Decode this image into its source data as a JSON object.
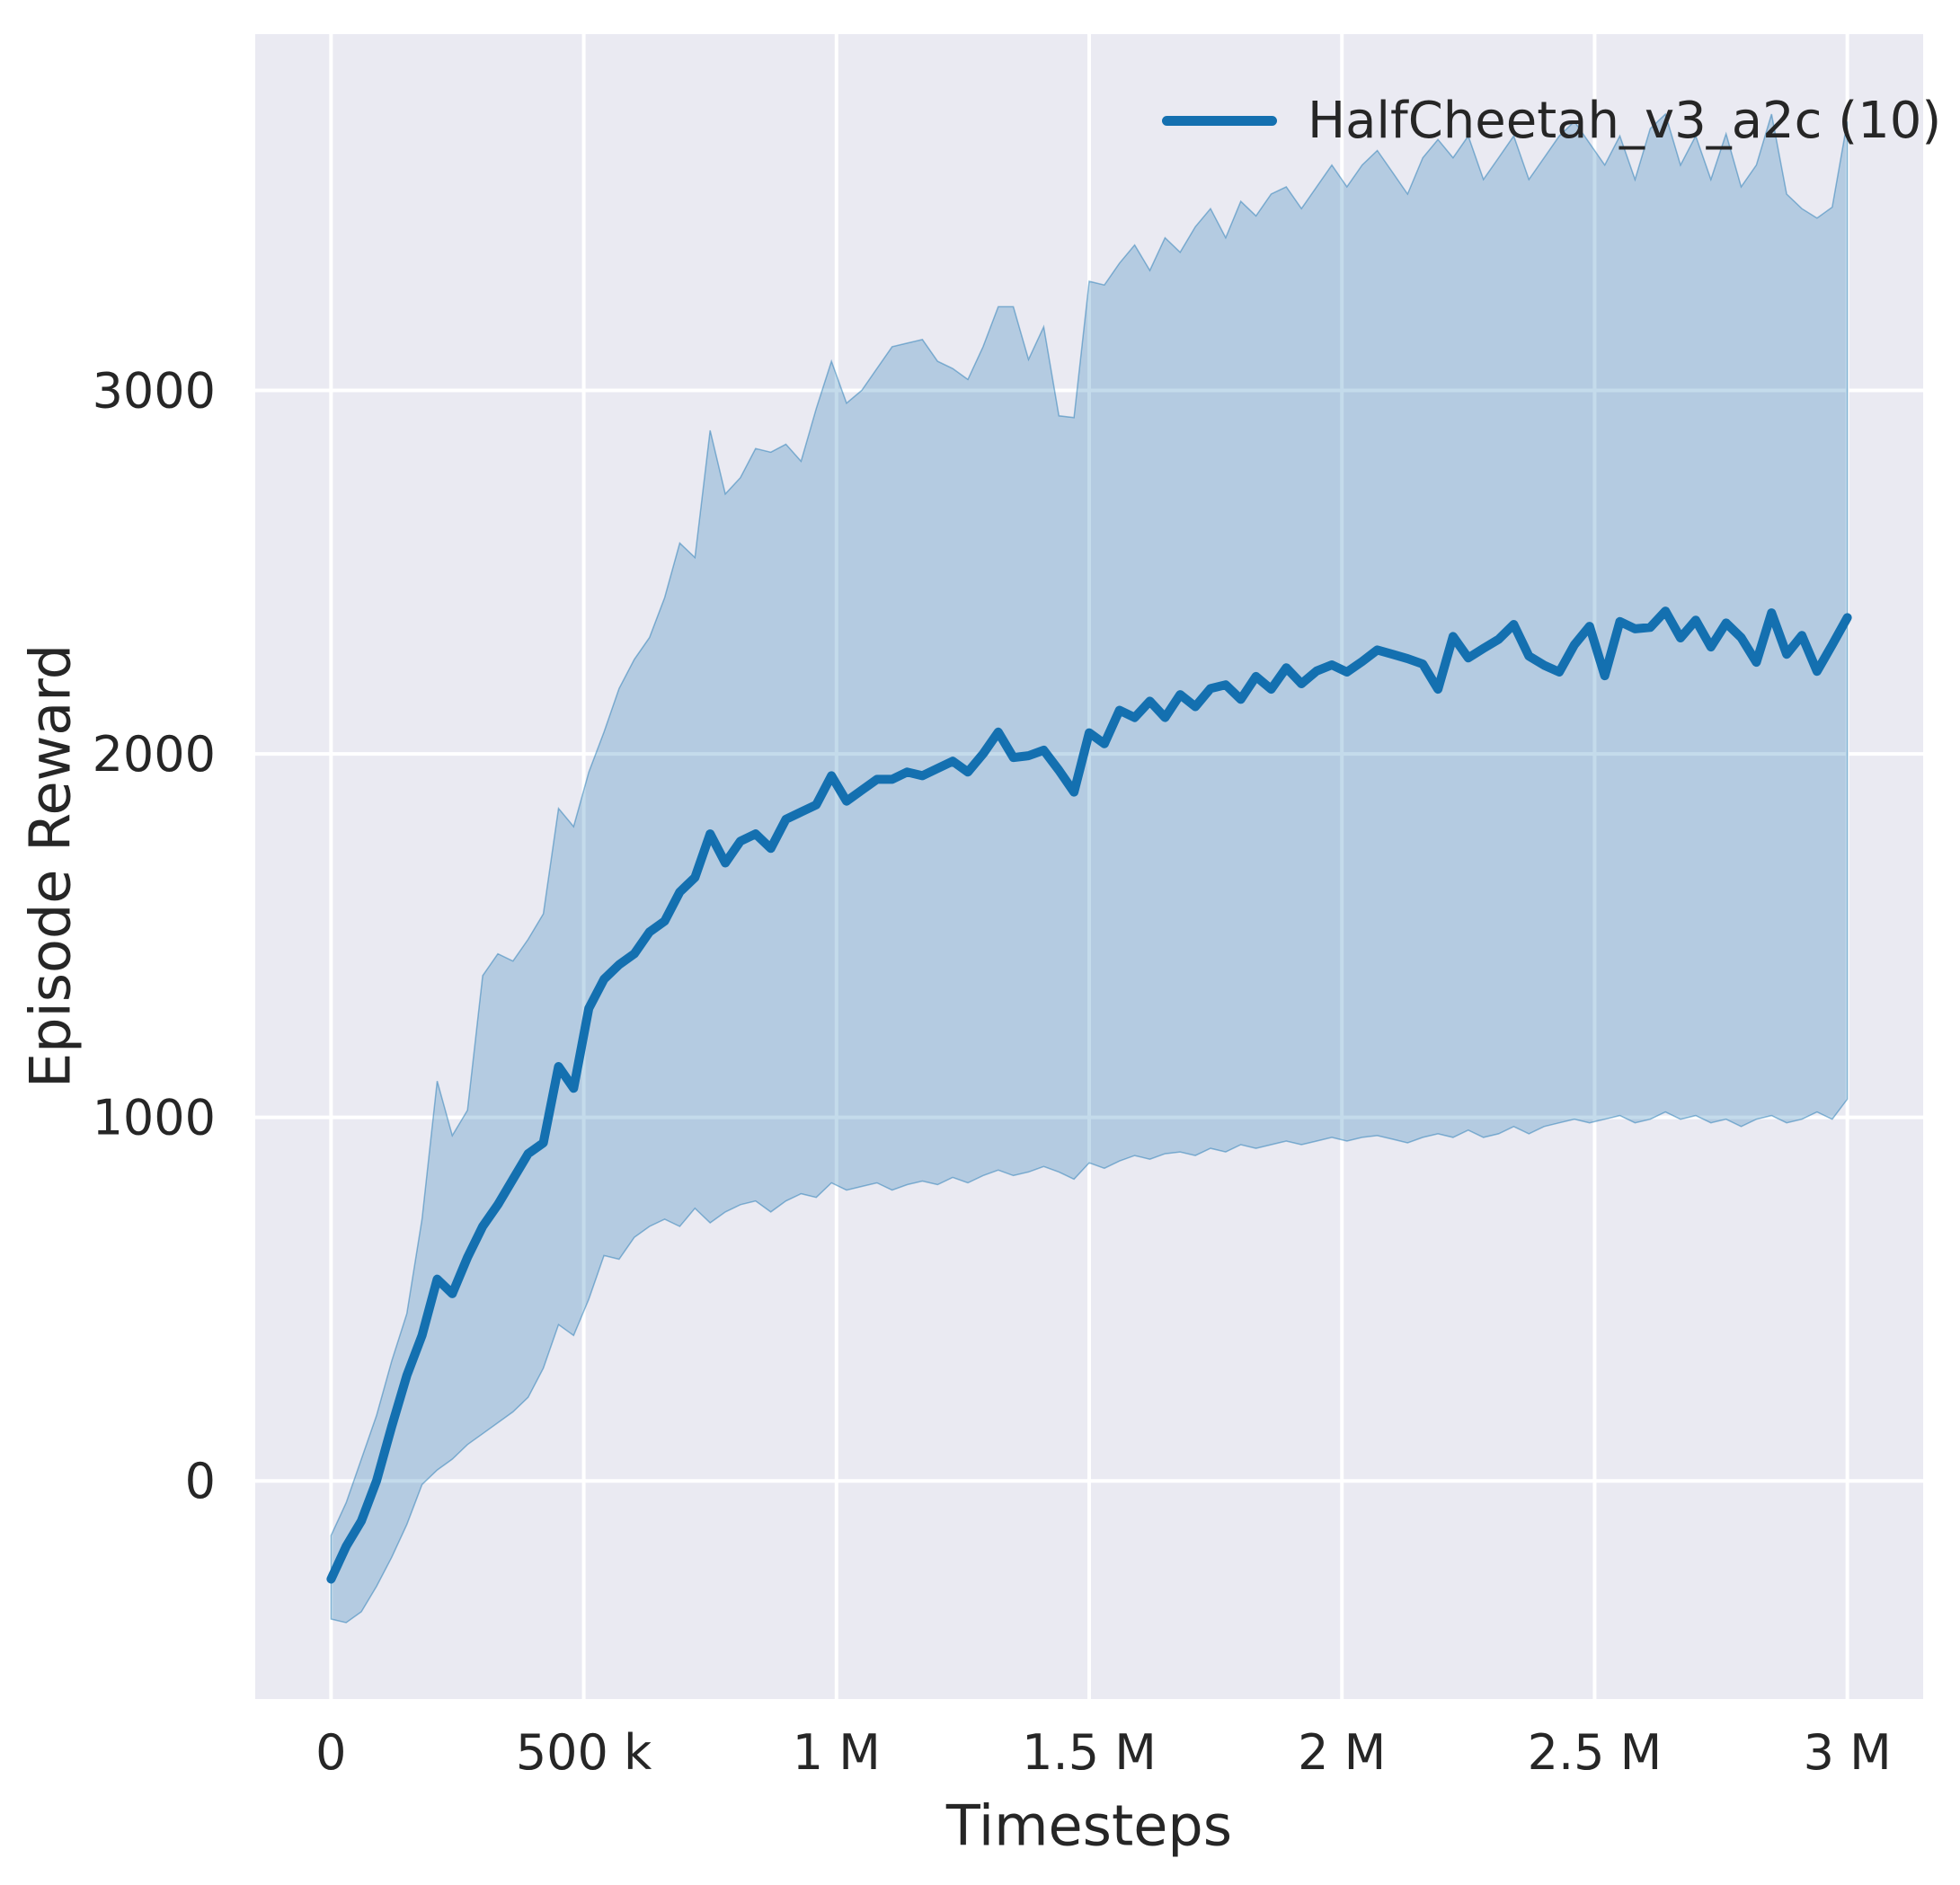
{
  "figure": {
    "background": "#ffffff"
  },
  "axes": {
    "background": "#eaeaf2",
    "grid_color": "#ffffff",
    "text_color": "#262626",
    "grid_linewidth": 4
  },
  "legend": {
    "position": "upper right"
  },
  "chart_data": {
    "type": "line",
    "title": "",
    "xlabel": "Timesteps",
    "ylabel": "Episode Reward",
    "xlim": [
      -150000,
      3150000
    ],
    "ylim": [
      -600,
      3980
    ],
    "grid": true,
    "legend_position": "upper right",
    "x_ticks": [
      {
        "value": 0,
        "label": "0"
      },
      {
        "value": 500000,
        "label": "500 k"
      },
      {
        "value": 1000000,
        "label": "1 M"
      },
      {
        "value": 1500000,
        "label": "1.5 M"
      },
      {
        "value": 2000000,
        "label": "2 M"
      },
      {
        "value": 2500000,
        "label": "2.5 M"
      },
      {
        "value": 3000000,
        "label": "3 M"
      }
    ],
    "y_ticks": [
      {
        "value": 0,
        "label": "0"
      },
      {
        "value": 1000,
        "label": "1000"
      },
      {
        "value": 2000,
        "label": "2000"
      },
      {
        "value": 3000,
        "label": "3000"
      }
    ],
    "series": [
      {
        "name": "HalfCheetah_v3_a2c (10)",
        "color": "#1470b0",
        "line_width": 10,
        "band_opacity": 0.25,
        "x": [
          0,
          30000,
          60000,
          90000,
          120000,
          150000,
          180000,
          210000,
          240000,
          270000,
          300000,
          330000,
          360000,
          390000,
          420000,
          450000,
          480000,
          510000,
          540000,
          570000,
          600000,
          630000,
          660000,
          690000,
          720000,
          750000,
          780000,
          810000,
          840000,
          870000,
          900000,
          930000,
          960000,
          990000,
          1020000,
          1050000,
          1080000,
          1110000,
          1140000,
          1170000,
          1200000,
          1230000,
          1260000,
          1290000,
          1320000,
          1350000,
          1380000,
          1410000,
          1440000,
          1470000,
          1500000,
          1530000,
          1560000,
          1590000,
          1620000,
          1650000,
          1680000,
          1710000,
          1740000,
          1770000,
          1800000,
          1830000,
          1860000,
          1890000,
          1920000,
          1950000,
          1980000,
          2010000,
          2040000,
          2070000,
          2100000,
          2130000,
          2160000,
          2190000,
          2220000,
          2250000,
          2280000,
          2310000,
          2340000,
          2370000,
          2400000,
          2430000,
          2460000,
          2490000,
          2520000,
          2550000,
          2580000,
          2610000,
          2640000,
          2670000,
          2700000,
          2730000,
          2760000,
          2790000,
          2820000,
          2850000,
          2880000,
          2910000,
          2940000,
          2970000,
          3000000
        ],
        "mean": [
          -270,
          -180,
          -110,
          0,
          150,
          290,
          400,
          555,
          515,
          615,
          700,
          760,
          830,
          900,
          930,
          1140,
          1080,
          1300,
          1380,
          1420,
          1450,
          1510,
          1540,
          1620,
          1660,
          1780,
          1700,
          1760,
          1780,
          1740,
          1820,
          1840,
          1860,
          1940,
          1870,
          1900,
          1930,
          1930,
          1950,
          1940,
          1960,
          1980,
          1950,
          2000,
          2060,
          1990,
          1995,
          2010,
          1955,
          1895,
          2058,
          2028,
          2120,
          2100,
          2145,
          2100,
          2163,
          2130,
          2180,
          2190,
          2150,
          2213,
          2178,
          2237,
          2193,
          2228,
          2245,
          2225,
          2254,
          2286,
          2274,
          2262,
          2247,
          2178,
          2323,
          2264,
          2290,
          2315,
          2356,
          2269,
          2244,
          2225,
          2300,
          2351,
          2215,
          2364,
          2344,
          2348,
          2393,
          2319,
          2368,
          2294,
          2360,
          2320,
          2252,
          2388,
          2274,
          2326,
          2227,
          2300,
          2375
        ],
        "band_upper": [
          -150,
          -60,
          60,
          180,
          330,
          460,
          720,
          1100,
          950,
          1020,
          1390,
          1450,
          1430,
          1490,
          1560,
          1850,
          1800,
          1950,
          2060,
          2180,
          2260,
          2320,
          2430,
          2580,
          2540,
          2890,
          2715,
          2760,
          2840,
          2830,
          2852,
          2805,
          2950,
          3080,
          2965,
          3000,
          3060,
          3120,
          3130,
          3140,
          3080,
          3060,
          3030,
          3120,
          3230,
          3230,
          3085,
          3175,
          2930,
          2925,
          3300,
          3290,
          3350,
          3400,
          3330,
          3420,
          3380,
          3450,
          3500,
          3420,
          3520,
          3480,
          3540,
          3560,
          3500,
          3560,
          3620,
          3560,
          3620,
          3660,
          3600,
          3540,
          3640,
          3690,
          3640,
          3700,
          3580,
          3640,
          3700,
          3580,
          3640,
          3700,
          3740,
          3680,
          3620,
          3700,
          3580,
          3720,
          3760,
          3620,
          3700,
          3580,
          3706,
          3560,
          3620,
          3760,
          3540,
          3500,
          3474,
          3504,
          3740
        ],
        "band_lower": [
          -380,
          -390,
          -360,
          -290,
          -210,
          -120,
          -10,
          30,
          60,
          100,
          130,
          160,
          190,
          230,
          310,
          430,
          400,
          500,
          620,
          610,
          670,
          700,
          720,
          700,
          750,
          710,
          740,
          760,
          770,
          740,
          770,
          790,
          780,
          820,
          800,
          810,
          820,
          800,
          815,
          825,
          815,
          835,
          820,
          840,
          855,
          840,
          850,
          865,
          850,
          830,
          875,
          860,
          880,
          895,
          885,
          900,
          905,
          895,
          915,
          905,
          925,
          915,
          925,
          935,
          925,
          935,
          945,
          935,
          945,
          950,
          940,
          930,
          945,
          955,
          945,
          965,
          945,
          955,
          975,
          955,
          975,
          985,
          995,
          985,
          995,
          1005,
          985,
          995,
          1015,
          995,
          1005,
          985,
          995,
          975,
          995,
          1005,
          985,
          995,
          1015,
          995,
          1050
        ]
      }
    ]
  }
}
